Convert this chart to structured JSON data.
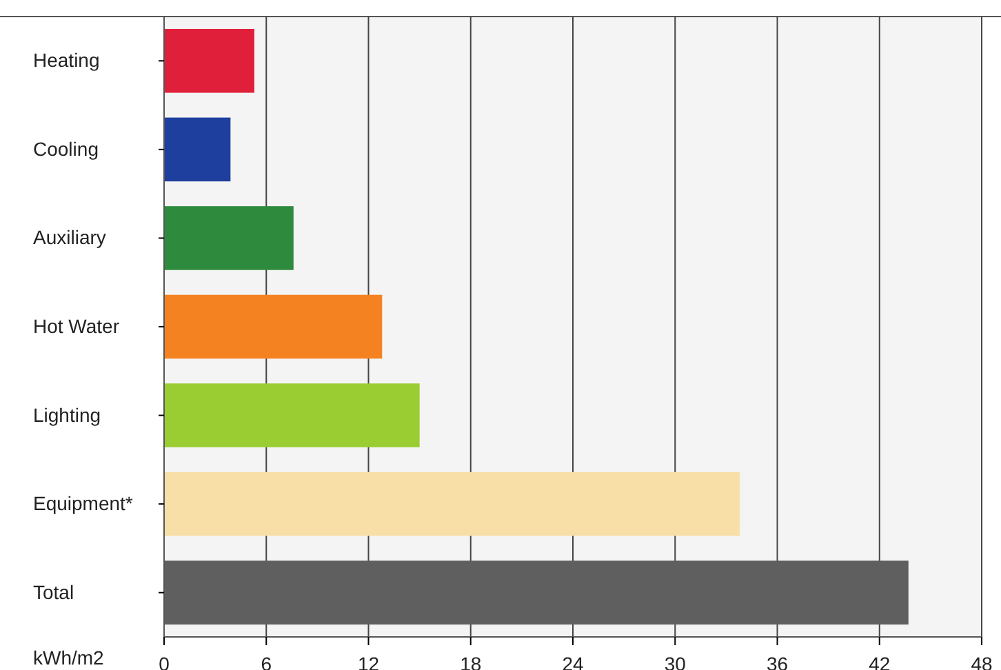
{
  "chart_data": {
    "type": "bar",
    "orientation": "horizontal",
    "categories": [
      "Heating",
      "Cooling",
      "Auxiliary",
      "Hot Water",
      "Lighting",
      "Equipment*",
      "Total"
    ],
    "values": [
      5.3,
      3.9,
      7.6,
      12.8,
      15.0,
      33.8,
      43.7
    ],
    "colors": [
      "#e0203a",
      "#1f3f9f",
      "#2e8b3e",
      "#f58220",
      "#9acd32",
      "#f8dfa8",
      "#5f5f5f"
    ],
    "xlabel": "kWh/m2",
    "xlim": [
      0,
      48
    ],
    "xticks": [
      0,
      6,
      12,
      18,
      24,
      30,
      36,
      42,
      48
    ],
    "grid": "x"
  }
}
